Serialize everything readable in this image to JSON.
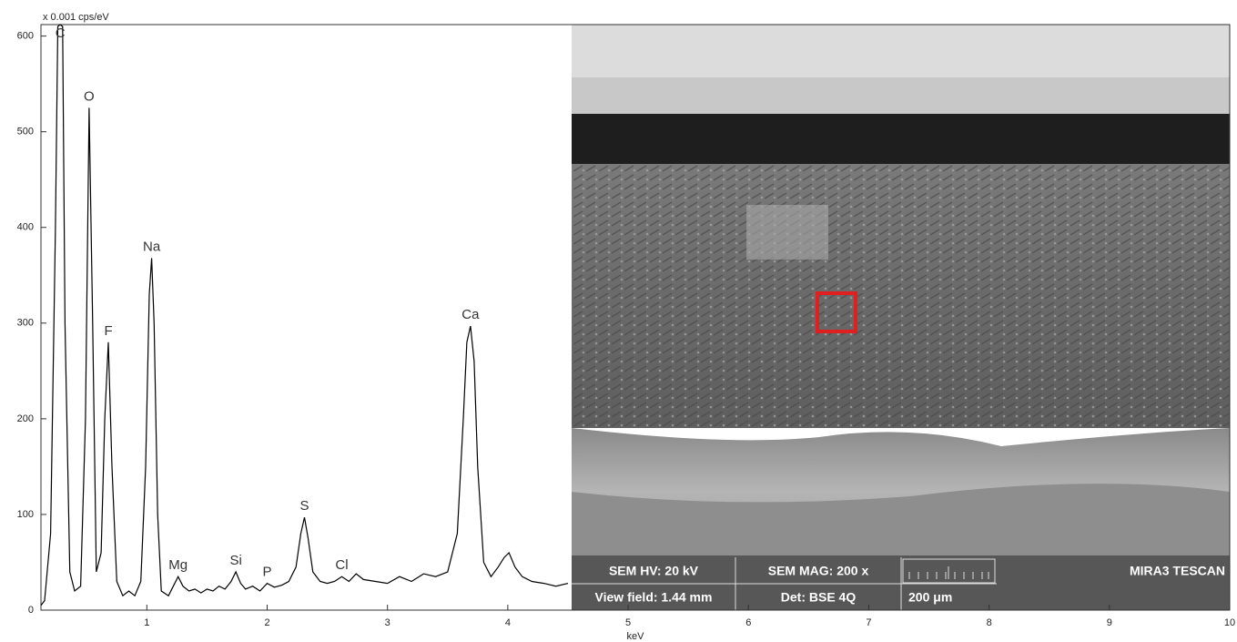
{
  "chart_data": {
    "type": "line",
    "y_label": "x 0.001 cps/eV",
    "x_label": "keV",
    "color": "#000000",
    "xlim": [
      0.12,
      10
    ],
    "ylim": [
      0,
      612
    ],
    "xticks": [
      1,
      2,
      3,
      4,
      5,
      6,
      7,
      8,
      9,
      10
    ],
    "yticks": [
      0,
      100,
      200,
      300,
      400,
      500,
      600
    ],
    "x": [
      0.12,
      0.15,
      0.2,
      0.24,
      0.26,
      0.28,
      0.3,
      0.32,
      0.36,
      0.4,
      0.45,
      0.49,
      0.52,
      0.55,
      0.58,
      0.62,
      0.65,
      0.68,
      0.71,
      0.75,
      0.8,
      0.85,
      0.9,
      0.95,
      0.99,
      1.02,
      1.04,
      1.06,
      1.09,
      1.12,
      1.18,
      1.22,
      1.26,
      1.3,
      1.35,
      1.4,
      1.45,
      1.5,
      1.55,
      1.6,
      1.65,
      1.7,
      1.74,
      1.78,
      1.82,
      1.88,
      1.94,
      2.0,
      2.06,
      2.12,
      2.18,
      2.24,
      2.28,
      2.31,
      2.34,
      2.38,
      2.44,
      2.5,
      2.56,
      2.62,
      2.68,
      2.74,
      2.8,
      2.9,
      3.0,
      3.1,
      3.2,
      3.3,
      3.4,
      3.5,
      3.58,
      3.63,
      3.66,
      3.69,
      3.72,
      3.75,
      3.8,
      3.86,
      3.92,
      3.97,
      4.01,
      4.06,
      4.12,
      4.2,
      4.3,
      4.4,
      4.5
    ],
    "values": [
      5,
      10,
      80,
      400,
      610,
      612,
      610,
      300,
      40,
      20,
      25,
      200,
      525,
      300,
      40,
      60,
      200,
      280,
      150,
      30,
      15,
      20,
      15,
      30,
      150,
      330,
      368,
      300,
      100,
      20,
      15,
      25,
      35,
      25,
      20,
      22,
      18,
      22,
      20,
      25,
      22,
      30,
      40,
      28,
      22,
      25,
      20,
      28,
      24,
      26,
      30,
      45,
      80,
      97,
      75,
      40,
      30,
      28,
      30,
      35,
      30,
      38,
      32,
      30,
      28,
      35,
      30,
      38,
      35,
      40,
      80,
      200,
      280,
      297,
      260,
      150,
      50,
      35,
      45,
      55,
      60,
      45,
      35,
      30,
      28,
      25,
      28
    ],
    "annotations": [
      {
        "text": "C",
        "x": 0.28,
        "y": 612
      },
      {
        "text": "O",
        "x": 0.52,
        "y": 525
      },
      {
        "text": "F",
        "x": 0.68,
        "y": 280
      },
      {
        "text": "Na",
        "x": 1.04,
        "y": 368
      },
      {
        "text": "Mg",
        "x": 1.26,
        "y": 35
      },
      {
        "text": "Si",
        "x": 1.74,
        "y": 40
      },
      {
        "text": "P",
        "x": 2.0,
        "y": 28
      },
      {
        "text": "S",
        "x": 2.31,
        "y": 97
      },
      {
        "text": "Cl",
        "x": 2.62,
        "y": 35
      },
      {
        "text": "Ca",
        "x": 3.69,
        "y": 297
      }
    ],
    "inset": {
      "hv": "SEM HV: 20 kV",
      "mag": "SEM MAG: 200 x",
      "brand": "MIRA3 TESCAN",
      "view_field": "View field: 1.44 mm",
      "detector": "Det: BSE 4Q",
      "scale_bar": "200 μm"
    }
  }
}
